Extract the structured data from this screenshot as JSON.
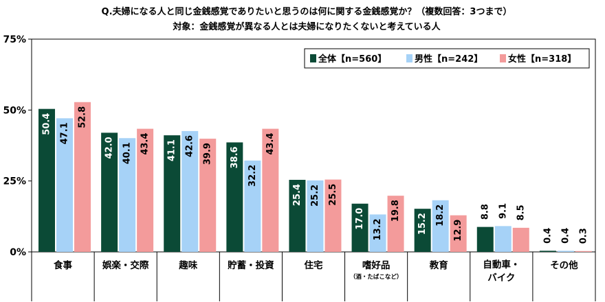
{
  "chart_data": {
    "type": "bar",
    "title": "Q.夫婦になる人と同じ金銭感覚でありたいと思うのは何に関する金銭感覚か？（複数回答：3つまで）",
    "subtitle": "対象：金銭感覚が異なる人とは夫婦になりたくないと考えている人",
    "categories": [
      {
        "label": "食事",
        "sub": ""
      },
      {
        "label": "娯楽・交際",
        "sub": ""
      },
      {
        "label": "趣味",
        "sub": ""
      },
      {
        "label": "貯蓄・投資",
        "sub": ""
      },
      {
        "label": "住宅",
        "sub": ""
      },
      {
        "label": "嗜好品",
        "sub": "（酒・たばこなど）"
      },
      {
        "label": "教育",
        "sub": ""
      },
      {
        "label": "自動車・\nバイク",
        "sub": ""
      },
      {
        "label": "その他",
        "sub": ""
      }
    ],
    "series": [
      {
        "name": "全体【n=560】",
        "color": "#0b4a36",
        "label_color": "#ffffff",
        "values": [
          50.4,
          42.0,
          41.1,
          38.6,
          25.4,
          17.0,
          15.2,
          8.8,
          0.4
        ],
        "labels": [
          "50.4",
          "42.0",
          "41.1",
          "38.6",
          "25.4",
          "17.0",
          "15.2",
          "8.8",
          "0.4"
        ]
      },
      {
        "name": "男性【n=242】",
        "color": "#a6d2f7",
        "label_color": "#000000",
        "values": [
          47.1,
          40.1,
          42.6,
          32.2,
          25.2,
          13.2,
          18.2,
          9.1,
          0.4
        ],
        "labels": [
          "47.1",
          "40.1",
          "42.6",
          "32.2",
          "25.2",
          "13.2",
          "18.2",
          "9.1",
          "0.4"
        ]
      },
      {
        "name": "女性【n=318】",
        "color": "#f39b9b",
        "label_color": "#000000",
        "values": [
          52.8,
          43.4,
          39.9,
          43.4,
          25.5,
          19.8,
          12.9,
          8.5,
          0.3
        ],
        "labels": [
          "52.8",
          "43.4",
          "39.9",
          "43.4",
          "25.5",
          "19.8",
          "12.9",
          "8.5",
          "0.3"
        ]
      }
    ],
    "ylim": [
      0,
      75
    ],
    "yticks": [
      0,
      25,
      50,
      75
    ],
    "ytick_labels": [
      "0%",
      "25%",
      "50%",
      "75%"
    ],
    "legend": "top-right",
    "grid": false
  }
}
